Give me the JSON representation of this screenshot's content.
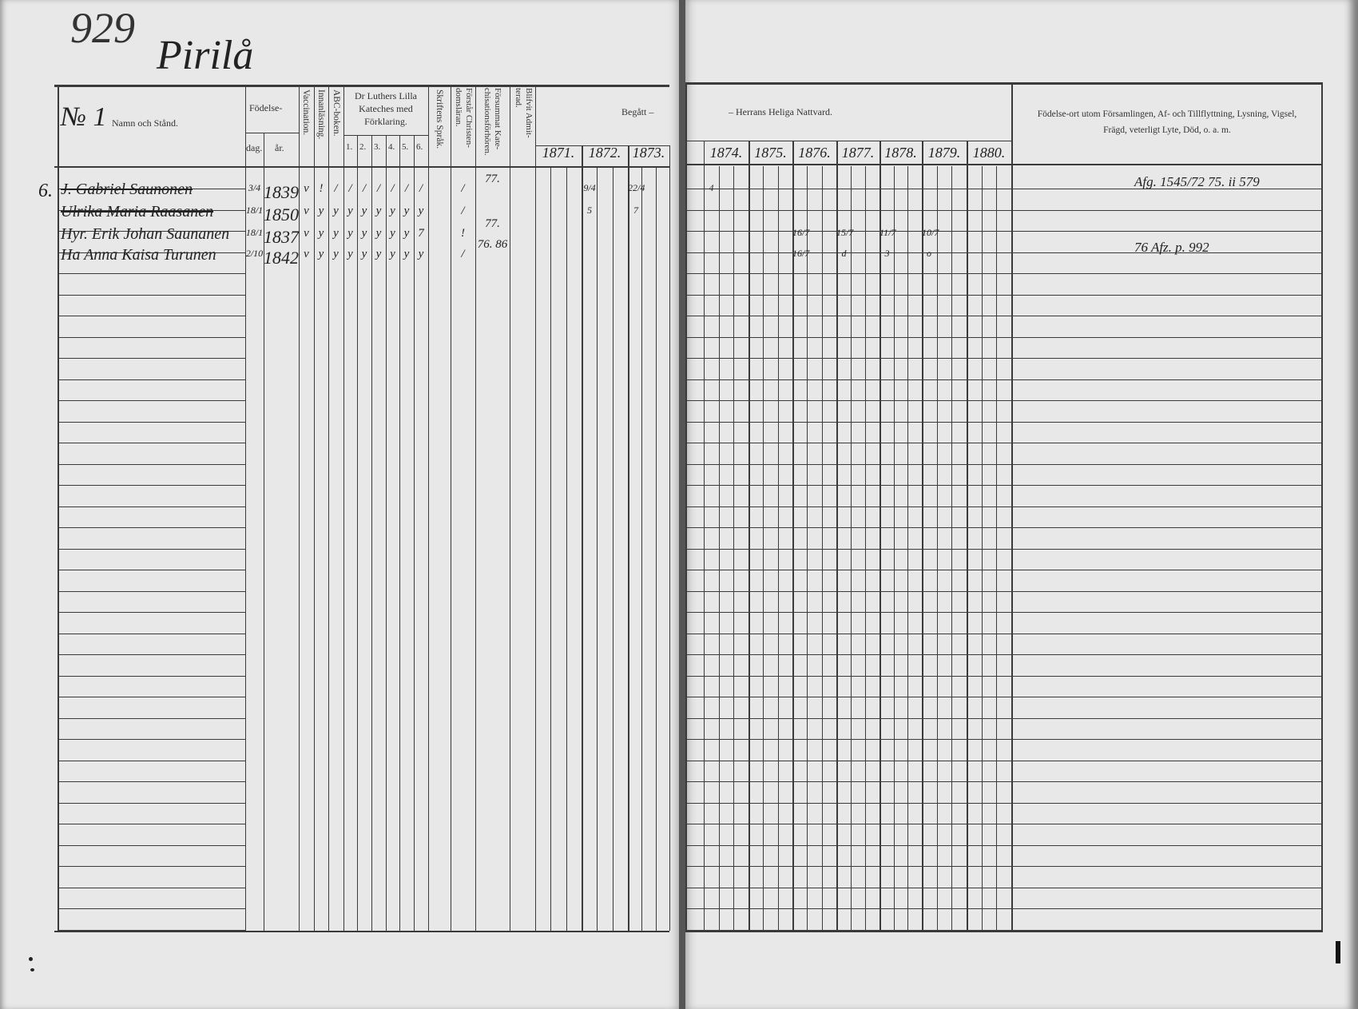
{
  "page_number": "929",
  "village_title": "Pirilå",
  "left_header": {
    "no_label": "№ 1",
    "name_label": "Namn och Stånd.",
    "birth_label": "Födelse-",
    "day_label": "dag.",
    "year_label": "år.",
    "vaccination_label": "Vaccination.",
    "reading_label": "Innanläsning.",
    "abc_label": "ABC-boken.",
    "catechism_label": [
      "Dr Luthers Lilla",
      "Kateches med",
      "Förklaring."
    ],
    "catechism_parts": [
      "1.",
      "2.",
      "3.",
      "4.",
      "5.",
      "6."
    ],
    "scripture_label": "Skriftens Språk.",
    "understands_label": [
      "Förstår Christen-",
      "domsläran."
    ],
    "missed_label": [
      "Försummat Kate-",
      "chisationsförhören."
    ],
    "admitted_label": [
      "Blifvit Admit-",
      "terad."
    ],
    "communion_left": "Begått   –"
  },
  "right_header": {
    "communion_right": "–   Herrans Heliga Nattvard.",
    "remarks_label": [
      "Födelse-ort utom Församlingen, Af- och Tillflyttning, Lysning, Vigsel,",
      "Frägd, veterligt Lyte, Död, o. a. m."
    ]
  },
  "years": [
    "1871.",
    "1872.",
    "1873.",
    "1874.",
    "1875.",
    "1876.",
    "1877.",
    "1878.",
    "1879.",
    "1880."
  ],
  "rows": [
    {
      "margin": "6.",
      "name": "J. Gabriel Saunonen",
      "struck": true,
      "day": "3/4",
      "year": "1839",
      "vacc": "v",
      "reading": "!",
      "abc": "/",
      "cat": [
        "/",
        "/",
        "/",
        "/",
        "/",
        "/"
      ],
      "understands": "/",
      "missed": "77.",
      "y1872": "9/4",
      "y1873": "22/4",
      "y1874": "4",
      "y1876": "",
      "y1877": "",
      "y1878": "",
      "y1879": "",
      "remark": "Afg. 1545/72 75. ii 579"
    },
    {
      "margin": "",
      "name": "Ulrika Maria Raasanen",
      "struck": true,
      "day": "18/1",
      "year": "1850",
      "vacc": "v",
      "reading": "y",
      "abc": "y",
      "cat": [
        "y",
        "y",
        "y",
        "y",
        "y",
        "y"
      ],
      "understands": "/",
      "missed": "",
      "y1872": "5",
      "y1873": "7",
      "y1874": "",
      "y1876": "",
      "y1877": "",
      "y1878": "",
      "y1879": "",
      "remark": ""
    },
    {
      "margin": "",
      "name": "Hyr. Erik Johan Saunanen",
      "struck": false,
      "day": "18/1",
      "year": "1837",
      "vacc": "v",
      "reading": "y",
      "abc": "y",
      "cat": [
        "y",
        "y",
        "y",
        "y",
        "y",
        "7"
      ],
      "understands": "!",
      "missed": "77.",
      "y1872": "",
      "y1873": "",
      "y1874": "",
      "y1876": "16/7",
      "y1877": "15/7",
      "y1878": "11/7",
      "y1879": "10/7",
      "remark": ""
    },
    {
      "margin": "",
      "name": "Ha Anna Kaisa Turunen",
      "struck": false,
      "day": "2/10",
      "year": "1842",
      "vacc": "v",
      "reading": "y",
      "abc": "y",
      "cat": [
        "y",
        "y",
        "y",
        "y",
        "y",
        "y"
      ],
      "understands": "/",
      "missed": "76. 86",
      "y1872": "",
      "y1873": "",
      "y1874": "",
      "y1876": "16/7",
      "y1877": "d",
      "y1878": "3",
      "y1879": "o",
      "remark": "76 Afz. p. 992"
    }
  ]
}
